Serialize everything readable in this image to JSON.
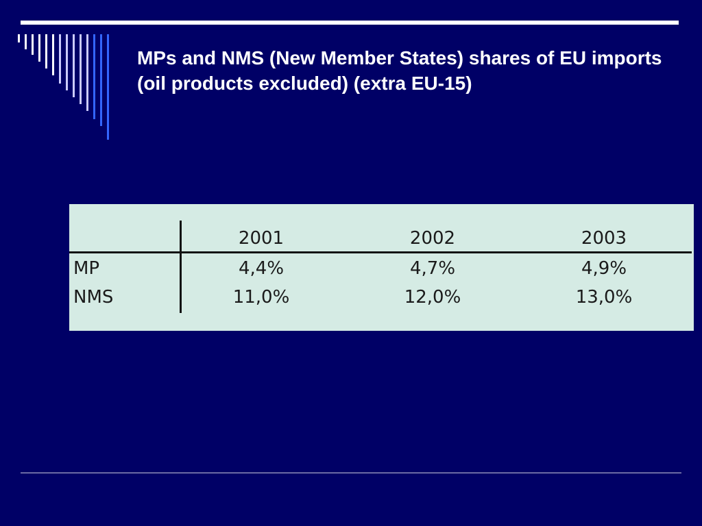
{
  "slide": {
    "title": "MPs and NMS (New Member States) shares of EU imports (oil products excluded) (extra EU-15)",
    "colors": {
      "background": "#000066",
      "title_text": "#ffffff",
      "table_background": "#d5ebe4",
      "decoration_bars": [
        "#ffffff",
        "#ccccff",
        "#3366ff"
      ]
    },
    "decoration": "vertical-bars-icon"
  },
  "table": {
    "columns": [
      "",
      "2001",
      "2002",
      "2003"
    ],
    "rows": [
      {
        "label": "MP",
        "values": [
          "4,4%",
          "4,7%",
          "4,9%"
        ]
      },
      {
        "label": "NMS",
        "values": [
          "11,0%",
          "12,0%",
          "13,0%"
        ]
      }
    ]
  }
}
